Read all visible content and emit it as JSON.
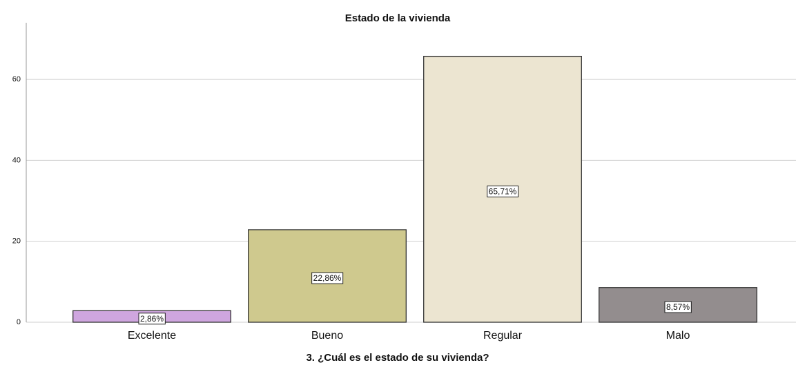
{
  "chart_data": {
    "type": "bar",
    "title": "Estado de la vivienda",
    "x_label": "3. ¿Cuál es el estado de su vivienda?",
    "categories": [
      "Excelente",
      "Bueno",
      "Regular",
      "Malo"
    ],
    "values": [
      2.86,
      22.86,
      65.71,
      8.57
    ],
    "value_labels": [
      "2,86%",
      "22,86%",
      "65,71%",
      "8,57%"
    ],
    "colors": [
      "#cfa6df",
      "#cfc98e",
      "#ece5d1",
      "#938d8e"
    ],
    "ylim": [
      0,
      74
    ],
    "yticks": [
      0,
      20,
      40,
      60
    ],
    "grid": true
  }
}
